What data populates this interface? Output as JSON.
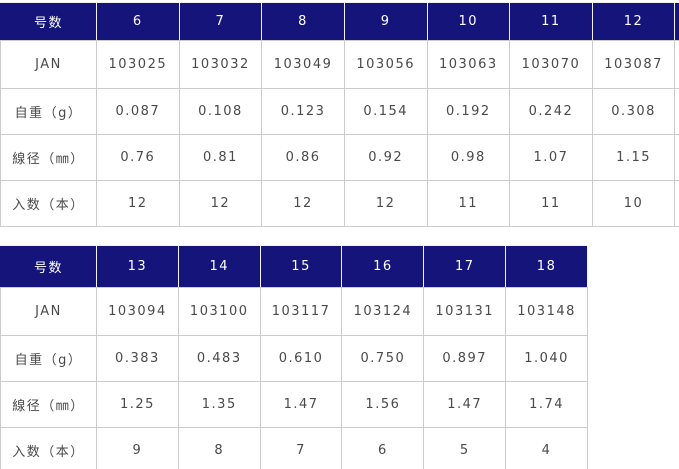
{
  "colors": {
    "header_bg": "#14147a",
    "header_text": "#ffffff",
    "body_text": "#4a4a4a",
    "border": "#cccccc",
    "page_bg": "#ffffff"
  },
  "tables": [
    {
      "name": "sizes-6-12",
      "header": [
        "号数",
        "6",
        "7",
        "8",
        "9",
        "10",
        "11",
        "12"
      ],
      "rows": [
        {
          "label": "JAN",
          "values": [
            "103025",
            "103032",
            "103049",
            "103056",
            "103063",
            "103070",
            "103087"
          ]
        },
        {
          "label": "自重（g）",
          "values": [
            "0.087",
            "0.108",
            "0.123",
            "0.154",
            "0.192",
            "0.242",
            "0.308"
          ]
        },
        {
          "label": "線径（㎜）",
          "values": [
            "0.76",
            "0.81",
            "0.86",
            "0.92",
            "0.98",
            "1.07",
            "1.15"
          ]
        },
        {
          "label": "入数（本）",
          "values": [
            "12",
            "12",
            "12",
            "12",
            "11",
            "11",
            "10"
          ]
        }
      ]
    },
    {
      "name": "sizes-13-18",
      "header": [
        "号数",
        "13",
        "14",
        "15",
        "16",
        "17",
        "18"
      ],
      "rows": [
        {
          "label": "JAN",
          "values": [
            "103094",
            "103100",
            "103117",
            "103124",
            "103131",
            "103148"
          ]
        },
        {
          "label": "自重（g）",
          "values": [
            "0.383",
            "0.483",
            "0.610",
            "0.750",
            "0.897",
            "1.040"
          ]
        },
        {
          "label": "線径（㎜）",
          "values": [
            "1.25",
            "1.35",
            "1.47",
            "1.56",
            "1.47",
            "1.74"
          ]
        },
        {
          "label": "入数（本）",
          "values": [
            "9",
            "8",
            "7",
            "6",
            "5",
            "4"
          ]
        }
      ]
    }
  ]
}
